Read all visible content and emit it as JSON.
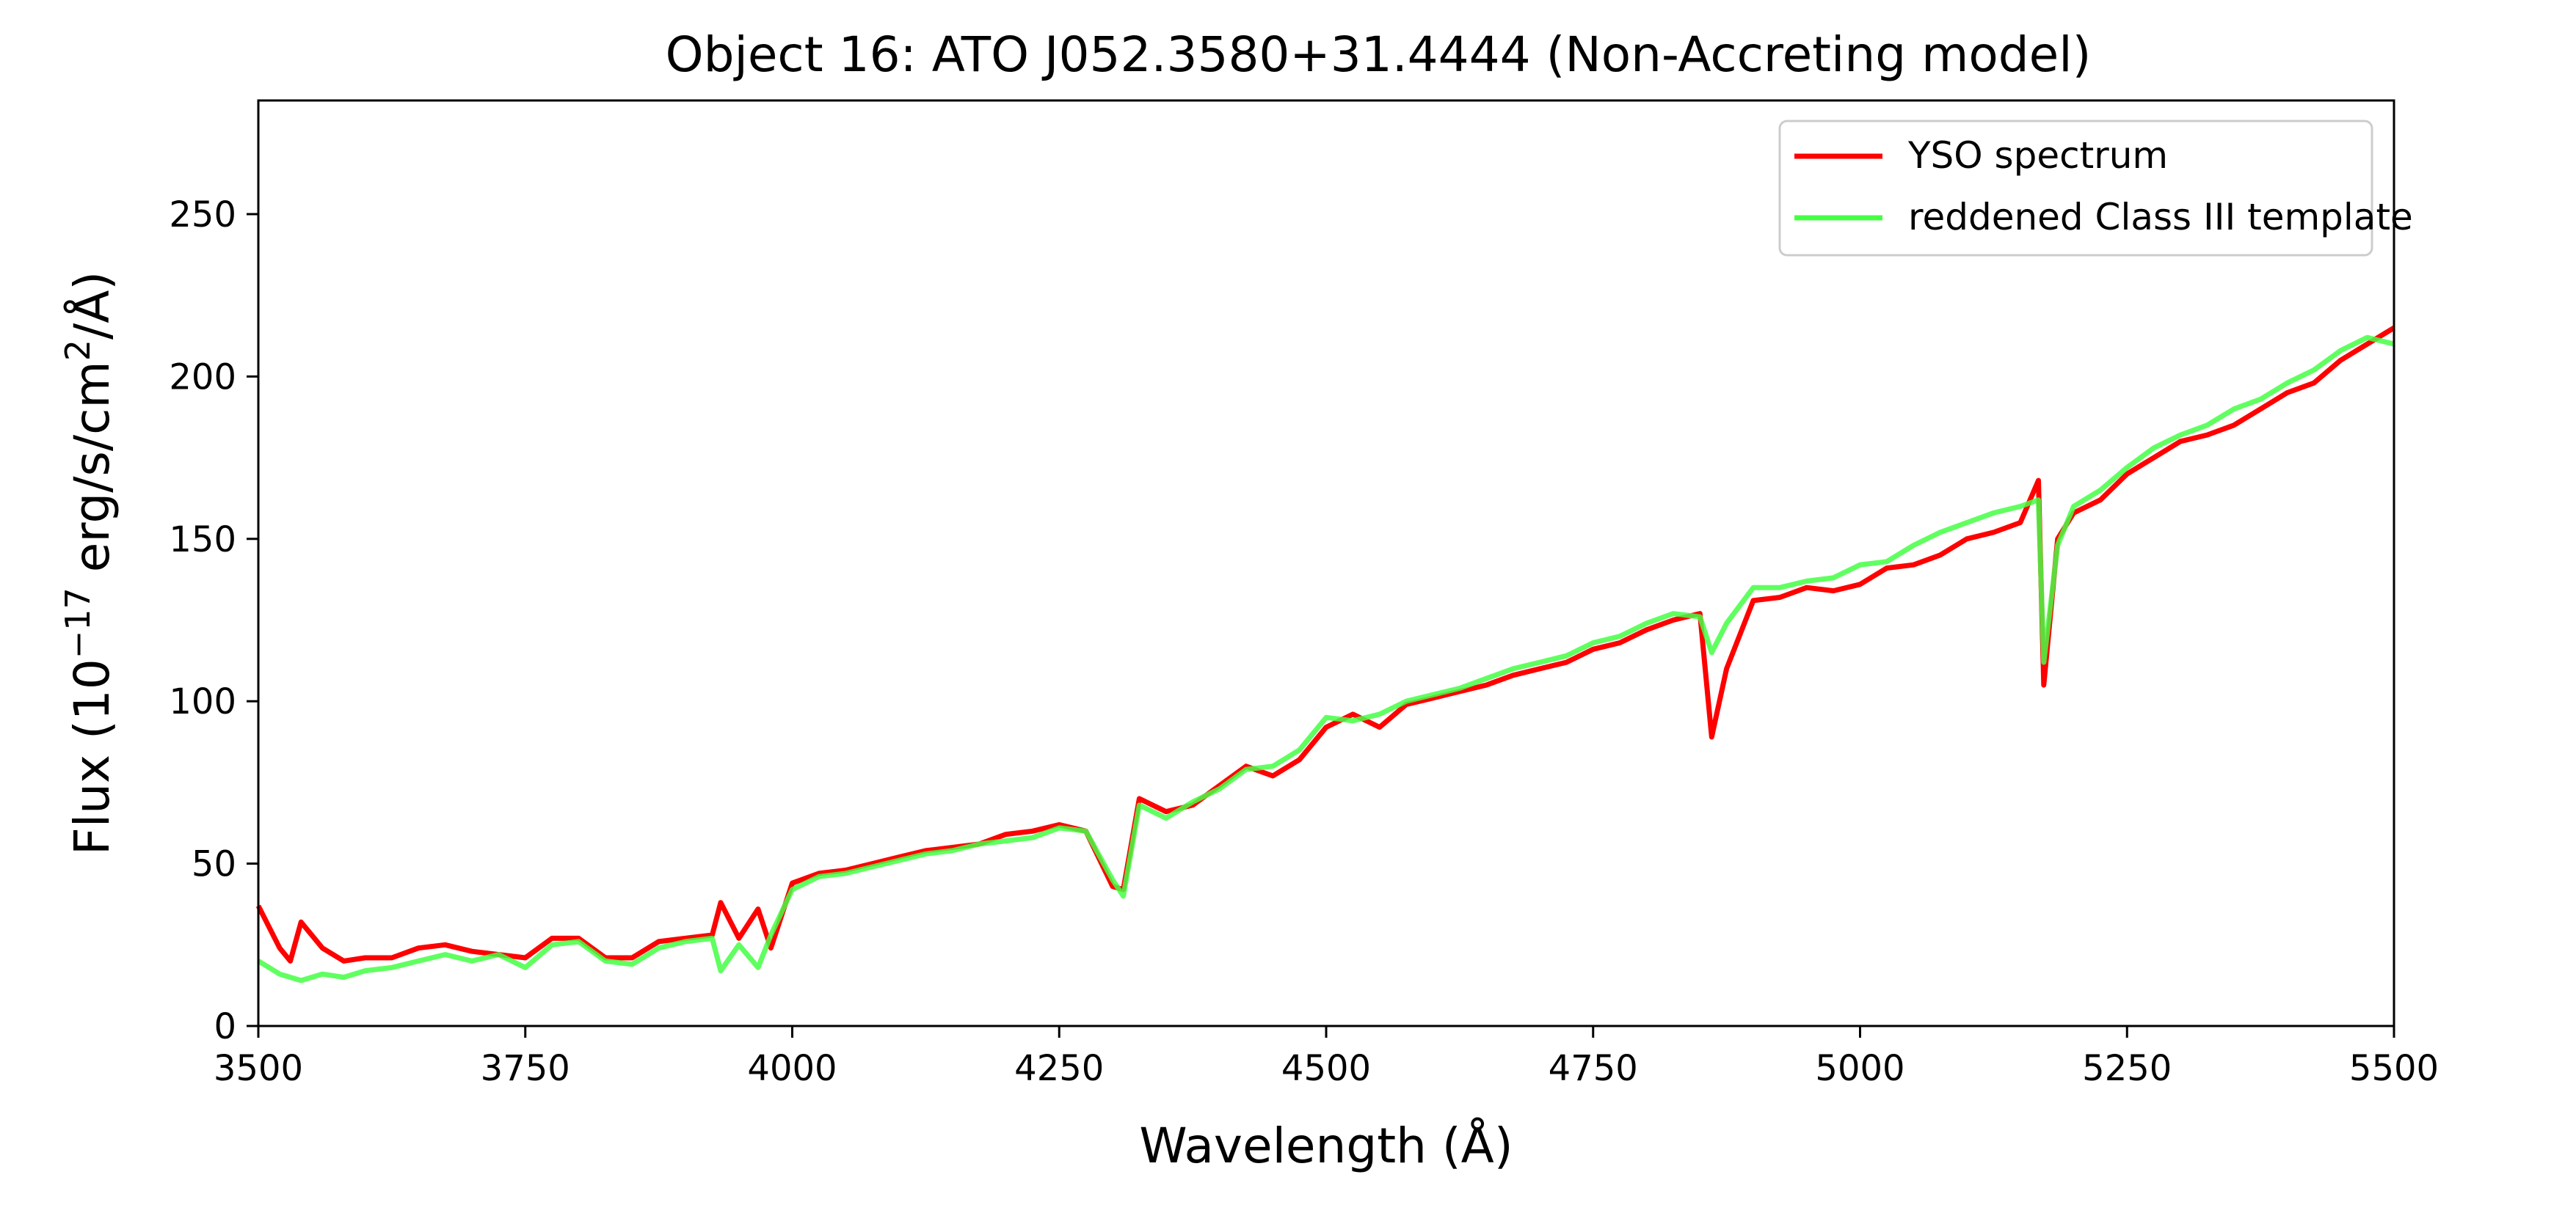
{
  "chart_data": {
    "type": "line",
    "title": "Object 16: ATO J052.3580+31.4444 (Non-Accreting model)",
    "xlabel": "Wavelength (Å)",
    "ylabel": {
      "prefix": "Flux (10",
      "exp1": "−17",
      "mid": " erg/s/cm",
      "exp2": "2",
      "suffix": "/Å)"
    },
    "xlim": [
      3500,
      5500
    ],
    "ylim": [
      0,
      285
    ],
    "xticks": [
      3500,
      3750,
      4000,
      4250,
      4500,
      4750,
      5000,
      5250,
      5500
    ],
    "yticks": [
      0,
      50,
      100,
      150,
      200,
      250
    ],
    "grid": false,
    "legend": {
      "position": "top-right"
    },
    "series": [
      {
        "name": "YSO spectrum",
        "color": "#ff0000",
        "x": [
          3500,
          3520,
          3530,
          3540,
          3560,
          3580,
          3600,
          3625,
          3650,
          3675,
          3700,
          3725,
          3750,
          3775,
          3800,
          3825,
          3850,
          3875,
          3900,
          3925,
          3933,
          3950,
          3968,
          3980,
          4000,
          4025,
          4050,
          4075,
          4100,
          4125,
          4150,
          4175,
          4200,
          4225,
          4250,
          4275,
          4300,
          4310,
          4325,
          4350,
          4375,
          4400,
          4425,
          4450,
          4475,
          4500,
          4525,
          4550,
          4575,
          4600,
          4625,
          4650,
          4675,
          4700,
          4725,
          4750,
          4775,
          4800,
          4825,
          4850,
          4861,
          4875,
          4900,
          4925,
          4950,
          4975,
          5000,
          5025,
          5050,
          5075,
          5100,
          5125,
          5150,
          5167,
          5172,
          5185,
          5200,
          5225,
          5250,
          5275,
          5300,
          5325,
          5350,
          5375,
          5400,
          5425,
          5450,
          5475,
          5500
        ],
        "values": [
          37,
          24,
          20,
          32,
          24,
          20,
          21,
          21,
          24,
          25,
          23,
          22,
          21,
          27,
          27,
          21,
          21,
          26,
          27,
          28,
          38,
          27,
          36,
          24,
          44,
          47,
          48,
          50,
          52,
          54,
          55,
          56,
          59,
          60,
          62,
          60,
          43,
          42,
          70,
          66,
          68,
          74,
          80,
          77,
          82,
          92,
          96,
          92,
          99,
          101,
          103,
          105,
          108,
          110,
          112,
          116,
          118,
          122,
          125,
          127,
          89,
          110,
          131,
          132,
          135,
          134,
          136,
          141,
          142,
          145,
          150,
          152,
          155,
          168,
          105,
          150,
          158,
          162,
          170,
          175,
          180,
          182,
          185,
          190,
          195,
          198,
          205,
          210,
          215
        ]
      },
      {
        "name": "reddened Class III template",
        "color": "#44ff44",
        "x": [
          3500,
          3520,
          3540,
          3560,
          3580,
          3600,
          3625,
          3650,
          3675,
          3700,
          3725,
          3750,
          3775,
          3800,
          3825,
          3850,
          3875,
          3900,
          3925,
          3933,
          3950,
          3968,
          3980,
          4000,
          4025,
          4050,
          4075,
          4100,
          4125,
          4150,
          4175,
          4200,
          4225,
          4250,
          4275,
          4300,
          4310,
          4325,
          4350,
          4375,
          4400,
          4425,
          4450,
          4475,
          4500,
          4525,
          4550,
          4575,
          4600,
          4625,
          4650,
          4675,
          4700,
          4725,
          4750,
          4775,
          4800,
          4825,
          4850,
          4861,
          4875,
          4900,
          4925,
          4950,
          4975,
          5000,
          5025,
          5050,
          5075,
          5100,
          5125,
          5150,
          5167,
          5172,
          5185,
          5200,
          5225,
          5250,
          5275,
          5300,
          5325,
          5350,
          5375,
          5400,
          5425,
          5450,
          5475,
          5500
        ],
        "values": [
          20,
          16,
          14,
          16,
          15,
          17,
          18,
          20,
          22,
          20,
          22,
          18,
          25,
          26,
          20,
          19,
          24,
          26,
          27,
          17,
          25,
          18,
          28,
          42,
          46,
          47,
          49,
          51,
          53,
          54,
          56,
          57,
          58,
          61,
          60,
          45,
          40,
          68,
          64,
          69,
          73,
          79,
          80,
          85,
          95,
          94,
          96,
          100,
          102,
          104,
          107,
          110,
          112,
          114,
          118,
          120,
          124,
          127,
          126,
          115,
          124,
          135,
          135,
          137,
          138,
          142,
          143,
          148,
          152,
          155,
          158,
          160,
          162,
          112,
          148,
          160,
          165,
          172,
          178,
          182,
          185,
          190,
          193,
          198,
          202,
          208,
          212,
          210
        ]
      }
    ]
  }
}
